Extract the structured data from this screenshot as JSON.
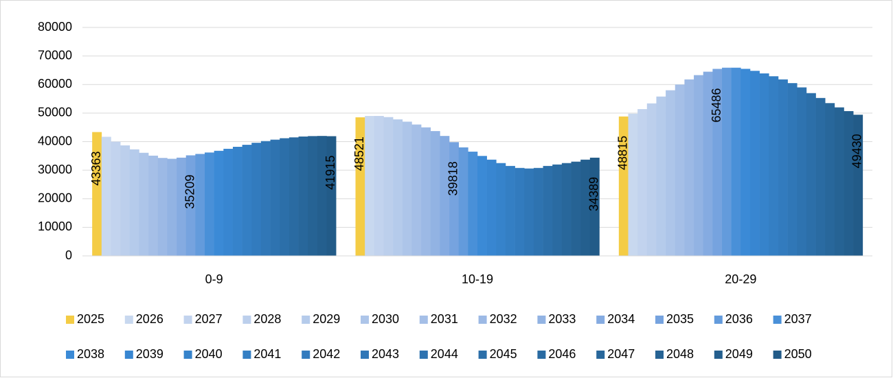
{
  "chart_data": {
    "type": "bar",
    "categories": [
      "0-9",
      "10-19",
      "20-29"
    ],
    "ylim": [
      0,
      80000
    ],
    "yticks": [
      0,
      10000,
      20000,
      30000,
      40000,
      50000,
      60000,
      70000,
      80000
    ],
    "grid": true,
    "legend": "bottom",
    "series": [
      {
        "name": "2025",
        "color": "#f4cc45",
        "values": [
          43363,
          48521,
          48815
        ],
        "data_labels": true
      },
      {
        "name": "2026",
        "color": "#c8d8ef",
        "values": [
          41700,
          49000,
          49800
        ]
      },
      {
        "name": "2027",
        "color": "#c2d3ee",
        "values": [
          40000,
          49000,
          51400
        ]
      },
      {
        "name": "2028",
        "color": "#bccfec",
        "values": [
          38700,
          48600,
          53400
        ]
      },
      {
        "name": "2029",
        "color": "#b5cbeb",
        "values": [
          37300,
          47800,
          55800
        ]
      },
      {
        "name": "2030",
        "color": "#adc5e9",
        "values": [
          36100,
          47000,
          58000
        ]
      },
      {
        "name": "2031",
        "color": "#a5bfe7",
        "values": [
          35100,
          46000,
          60000
        ]
      },
      {
        "name": "2032",
        "color": "#9cb9e5",
        "values": [
          34300,
          45000,
          61800
        ]
      },
      {
        "name": "2033",
        "color": "#92b3e3",
        "values": [
          34000,
          43700,
          63300
        ]
      },
      {
        "name": "2034",
        "color": "#85abe1",
        "values": [
          34400,
          42000,
          64500
        ]
      },
      {
        "name": "2035",
        "color": "#76a3df",
        "values": [
          35209,
          39818,
          65486
        ],
        "data_labels": true
      },
      {
        "name": "2036",
        "color": "#639bdc",
        "values": [
          35700,
          38000,
          65900
        ]
      },
      {
        "name": "2037",
        "color": "#4990d8",
        "values": [
          36200,
          36500,
          65900
        ]
      },
      {
        "name": "2038",
        "color": "#3b8ad6",
        "values": [
          36800,
          35000,
          65500
        ]
      },
      {
        "name": "2039",
        "color": "#3886d1",
        "values": [
          37500,
          33700,
          64800
        ]
      },
      {
        "name": "2040",
        "color": "#3683cb",
        "values": [
          38200,
          32500,
          63900
        ]
      },
      {
        "name": "2041",
        "color": "#347fc4",
        "values": [
          38900,
          31500,
          62900
        ]
      },
      {
        "name": "2042",
        "color": "#327bbe",
        "values": [
          39600,
          30800,
          61800
        ]
      },
      {
        "name": "2043",
        "color": "#3077b7",
        "values": [
          40200,
          30600,
          60500
        ]
      },
      {
        "name": "2044",
        "color": "#2e73b0",
        "values": [
          40700,
          30800,
          59000
        ]
      },
      {
        "name": "2045",
        "color": "#2c6fa9",
        "values": [
          41200,
          31500,
          57000
        ]
      },
      {
        "name": "2046",
        "color": "#2a6ba2",
        "values": [
          41500,
          32000,
          55300
        ]
      },
      {
        "name": "2047",
        "color": "#28679b",
        "values": [
          41800,
          32500,
          53500
        ]
      },
      {
        "name": "2048",
        "color": "#266394",
        "values": [
          41950,
          33000,
          52000
        ]
      },
      {
        "name": "2049",
        "color": "#245f8e",
        "values": [
          42000,
          33700,
          50700
        ]
      },
      {
        "name": "2050",
        "color": "#225b88",
        "values": [
          41915,
          34389,
          49430
        ],
        "data_labels": true
      }
    ]
  }
}
